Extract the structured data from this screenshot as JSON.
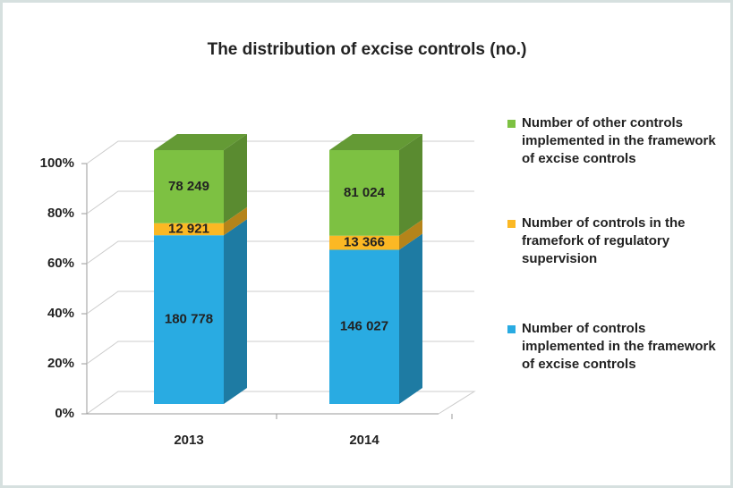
{
  "chart_data": {
    "type": "bar",
    "stacked": "percent",
    "title": "The distribution of excise controls (no.)",
    "categories": [
      "2013",
      "2014"
    ],
    "series": [
      {
        "name": "Number of controls implemented in the framework of excise controls",
        "color": "#29abe2",
        "values": [
          180778,
          146027
        ],
        "value_labels": [
          "180 778",
          "146 027"
        ]
      },
      {
        "name": "Number of controls in the framefork of regulatory supervision",
        "color": "#fbb824",
        "values": [
          12921,
          13366
        ],
        "value_labels": [
          "12 921",
          "13 366"
        ]
      },
      {
        "name": "Number of other controls implemented in the framework of excise controls",
        "color": "#7dc142",
        "values": [
          78249,
          81024
        ],
        "value_labels": [
          "78 249",
          "81 024"
        ]
      }
    ],
    "ylim": [
      0,
      100
    ],
    "yticks": [
      {
        "value": 0,
        "label": "0%"
      },
      {
        "value": 20,
        "label": "20%"
      },
      {
        "value": 40,
        "label": "40%"
      },
      {
        "value": 60,
        "label": "60%"
      },
      {
        "value": 80,
        "label": "80%"
      },
      {
        "value": 100,
        "label": "100%"
      }
    ],
    "grid": true,
    "legend": "right"
  }
}
